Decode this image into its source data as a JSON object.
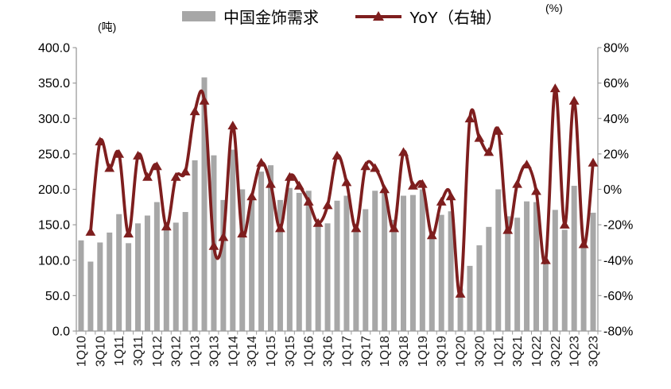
{
  "legend": {
    "bars_label": "中国金饰需求",
    "line_label": "YoY（右轴）"
  },
  "units": {
    "left": "(吨)",
    "right": "(%)"
  },
  "colors": {
    "bar": "#A7A7A7",
    "line": "#7E1E1E",
    "axis": "#9B9B9B",
    "tick_text": "#000000"
  },
  "chart_data": {
    "type": "bar",
    "title": "",
    "xlabel": "",
    "ylabel_left": "(吨)",
    "ylabel_right": "(%)",
    "grid": false,
    "legend_position": "top-center",
    "categories": [
      "1Q10",
      "2Q10",
      "3Q10",
      "4Q10",
      "1Q11",
      "2Q11",
      "3Q11",
      "4Q11",
      "1Q12",
      "2Q12",
      "3Q12",
      "4Q12",
      "1Q13",
      "2Q13",
      "3Q13",
      "4Q13",
      "1Q14",
      "2Q14",
      "3Q14",
      "4Q14",
      "1Q15",
      "2Q15",
      "3Q15",
      "4Q15",
      "1Q16",
      "2Q16",
      "3Q16",
      "4Q16",
      "1Q17",
      "2Q17",
      "3Q17",
      "4Q17",
      "1Q18",
      "2Q18",
      "3Q18",
      "4Q18",
      "1Q19",
      "2Q19",
      "3Q19",
      "4Q19",
      "1Q20",
      "2Q20",
      "3Q20",
      "4Q20",
      "1Q21",
      "2Q21",
      "3Q21",
      "4Q21",
      "1Q22",
      "2Q22",
      "3Q22",
      "4Q22",
      "1Q23",
      "2Q23",
      "3Q23"
    ],
    "x_labels_shown": [
      "1Q10",
      "3Q10",
      "1Q11",
      "3Q11",
      "1Q12",
      "3Q12",
      "1Q13",
      "3Q13",
      "1Q14",
      "3Q14",
      "1Q15",
      "3Q15",
      "1Q16",
      "3Q16",
      "1Q17",
      "3Q17",
      "1Q18",
      "3Q18",
      "1Q19",
      "3Q19",
      "1Q20",
      "3Q20",
      "1Q21",
      "3Q21",
      "1Q22",
      "3Q22",
      "1Q23",
      "3Q23"
    ],
    "series": [
      {
        "name": "中国金饰需求",
        "type": "bar",
        "axis": "left",
        "color": "#A7A7A7",
        "values": [
          128,
          98,
          125,
          139,
          165,
          124,
          152,
          163,
          182,
          150,
          153,
          168,
          241,
          358,
          248,
          185,
          256,
          200,
          188,
          225,
          234,
          185,
          202,
          195,
          198,
          148,
          152,
          184,
          191,
          143,
          172,
          198,
          198,
          157,
          191,
          192,
          200,
          138,
          164,
          169,
          60,
          92,
          121,
          147,
          200,
          162,
          160,
          183,
          182,
          95,
          171,
          143,
          205,
          120,
          167
        ]
      },
      {
        "name": "YoY（右轴）",
        "type": "line",
        "axis": "right",
        "color": "#7E1E1E",
        "marker": "triangle-up",
        "values": [
          null,
          -24,
          27,
          12,
          20,
          -25,
          19,
          7,
          13,
          -21,
          7,
          10,
          44,
          50,
          -32,
          -27,
          36,
          -25,
          -4,
          15,
          3,
          -22,
          7,
          2,
          -7,
          -19,
          -9,
          19,
          4,
          -22,
          13,
          12,
          0,
          -22,
          21,
          2,
          3,
          -26,
          -7,
          -4,
          -59,
          40,
          29,
          21,
          33,
          -23,
          3,
          14,
          -1,
          -40,
          57,
          -20,
          50,
          -31,
          15
        ]
      }
    ],
    "left_axis": {
      "min": 0,
      "max": 400,
      "step": 50,
      "tick_labels_top_to_bottom": [
        "400.0",
        "350.0",
        "300.0",
        "250.0",
        "200.0",
        "150.0",
        "100.0",
        "50.0",
        "0.0"
      ]
    },
    "right_axis": {
      "min": -80,
      "max": 80,
      "step": 20,
      "tick_labels_top_to_bottom": [
        "80%",
        "60%",
        "40%",
        "20%",
        "0%",
        "-20%",
        "-40%",
        "-60%",
        "-80%"
      ]
    }
  }
}
